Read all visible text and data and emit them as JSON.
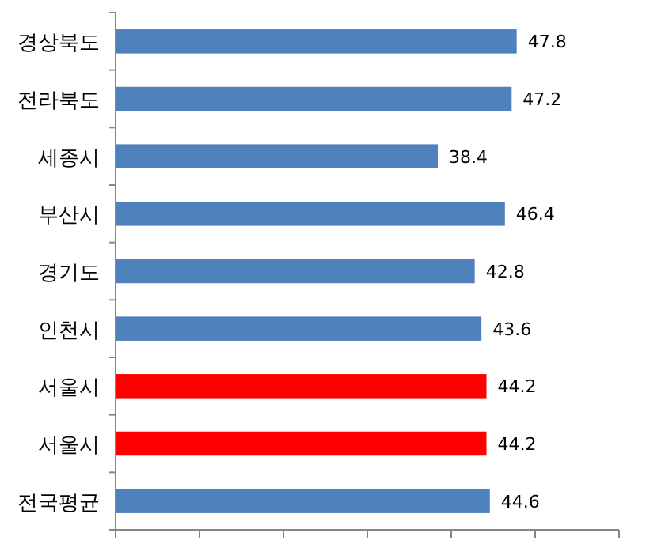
{
  "chart_data": {
    "type": "bar",
    "orientation": "horizontal",
    "categories": [
      "경상북도",
      "전라북도",
      "세종시",
      "부산시",
      "경기도",
      "인천시",
      "서울시",
      "서울시",
      "전국평균"
    ],
    "values": [
      47.8,
      47.2,
      38.4,
      46.4,
      42.8,
      43.6,
      44.2,
      44.2,
      44.6
    ],
    "colors": [
      "#4f81bd",
      "#4f81bd",
      "#4f81bd",
      "#4f81bd",
      "#4f81bd",
      "#4f81bd",
      "#ff0000",
      "#ff0000",
      "#4f81bd"
    ],
    "xlim": [
      0,
      60
    ],
    "xticks": [
      {
        "value": 0,
        "label": null
      },
      {
        "value": 10,
        "label": null
      },
      {
        "value": 20,
        "label": null
      },
      {
        "value": 30,
        "label": null
      },
      {
        "value": 40,
        "label": null
      },
      {
        "value": 50,
        "label": null
      },
      {
        "value": 60,
        "label": null
      }
    ],
    "data_labels": true,
    "grid": false
  }
}
